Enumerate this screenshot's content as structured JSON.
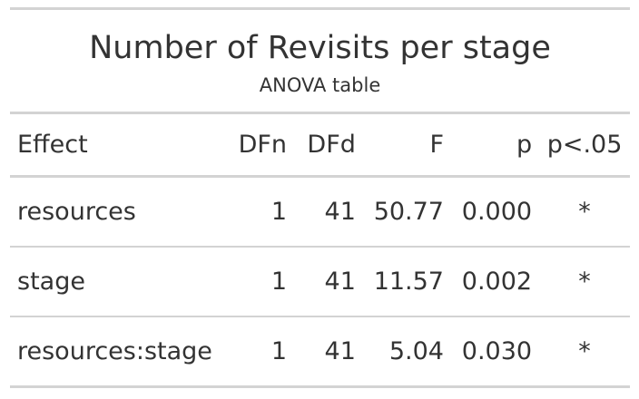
{
  "table": {
    "title": "Number of Revisits per stage",
    "subtitle": "ANOVA table",
    "columns": [
      "Effect",
      "DFn",
      "DFd",
      "F",
      "p",
      "p<.05"
    ],
    "rows": [
      {
        "effect": "resources",
        "dfn": "1",
        "dfd": "41",
        "f": "50.77",
        "p": "0.000",
        "sig": "*"
      },
      {
        "effect": "stage",
        "dfn": "1",
        "dfd": "41",
        "f": "11.57",
        "p": "0.002",
        "sig": "*"
      },
      {
        "effect": "resources:stage",
        "dfn": "1",
        "dfd": "41",
        "f": "5.04",
        "p": "0.030",
        "sig": "*"
      }
    ]
  }
}
